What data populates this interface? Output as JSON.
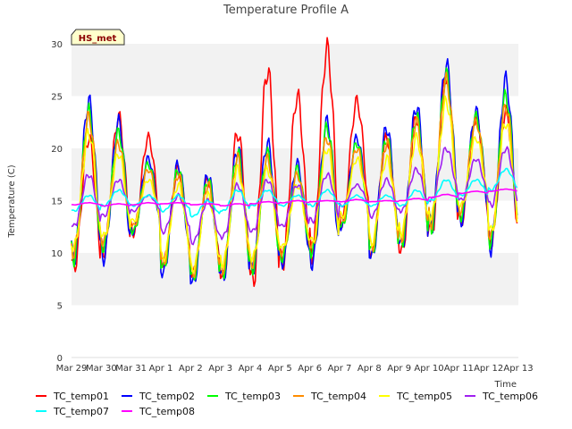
{
  "chart_data": {
    "type": "line",
    "title": "Temperature Profile A",
    "xlabel": "Time",
    "ylabel": "Temperature (C)",
    "ylim": [
      0,
      30
    ],
    "yticks": [
      0,
      5,
      10,
      15,
      20,
      25,
      30
    ],
    "xlim": [
      "2025-03-29",
      "2025-04-13"
    ],
    "xticks": [
      "Mar 29",
      "Mar 30",
      "Mar 31",
      "Apr 1",
      "Apr 2",
      "Apr 3",
      "Apr 4",
      "Apr 5",
      "Apr 6",
      "Apr 7",
      "Apr 8",
      "Apr 9",
      "Apr 10",
      "Apr 11",
      "Apr 12",
      "Apr 13"
    ],
    "grid": "horizontal bands",
    "legend_position": "bottom",
    "site_badge": "HS_met",
    "x": [
      "2025-03-29",
      "2025-03-30",
      "2025-03-31",
      "2025-04-01",
      "2025-04-02",
      "2025-04-03",
      "2025-04-04",
      "2025-04-05",
      "2025-04-06",
      "2025-04-07",
      "2025-04-08",
      "2025-04-09",
      "2025-04-10",
      "2025-04-11",
      "2025-04-12"
    ],
    "series": [
      {
        "name": "TC_temp01",
        "color": "#ff0000",
        "daily_min": [
          8.5,
          10.0,
          12.0,
          9.0,
          8.0,
          7.5,
          7.0,
          9.0,
          10.0,
          13.0,
          10.0,
          10.0,
          12.0,
          13.0,
          11.0
        ],
        "daily_max": [
          21.0,
          23.0,
          21.0,
          18.0,
          17.0,
          21.5,
          27.5,
          25.0,
          29.5,
          24.5,
          21.0,
          23.0,
          27.0,
          23.0,
          23.5
        ]
      },
      {
        "name": "TC_temp02",
        "color": "#0000ff",
        "daily_min": [
          9.5,
          9.5,
          12.0,
          8.0,
          7.0,
          7.5,
          8.5,
          9.0,
          9.0,
          12.5,
          9.5,
          10.5,
          12.5,
          13.0,
          10.5
        ],
        "daily_max": [
          24.5,
          22.5,
          19.0,
          18.5,
          17.5,
          20.0,
          20.5,
          18.5,
          22.5,
          21.0,
          22.0,
          24.0,
          28.0,
          23.5,
          26.5
        ]
      },
      {
        "name": "TC_temp03",
        "color": "#00ff00",
        "daily_min": [
          9.5,
          10.5,
          12.0,
          8.5,
          7.5,
          8.0,
          8.5,
          9.5,
          10.0,
          12.5,
          10.0,
          11.0,
          12.5,
          13.5,
          11.0
        ],
        "daily_max": [
          23.5,
          21.5,
          18.5,
          18.0,
          17.0,
          19.5,
          19.5,
          18.0,
          22.0,
          20.5,
          21.0,
          23.0,
          27.0,
          23.0,
          25.0
        ]
      },
      {
        "name": "TC_temp04",
        "color": "#ff8c00",
        "daily_min": [
          10.0,
          11.0,
          12.5,
          9.0,
          8.0,
          8.5,
          9.0,
          10.0,
          10.5,
          13.0,
          10.5,
          11.5,
          13.0,
          14.0,
          11.5
        ],
        "daily_max": [
          23.0,
          20.5,
          18.0,
          17.5,
          16.5,
          19.0,
          19.0,
          17.5,
          21.0,
          20.0,
          20.5,
          22.5,
          26.5,
          22.5,
          24.0
        ]
      },
      {
        "name": "TC_temp05",
        "color": "#ffff00",
        "daily_min": [
          10.5,
          11.5,
          13.0,
          9.5,
          8.5,
          9.0,
          9.5,
          10.5,
          11.0,
          13.5,
          11.0,
          12.0,
          13.5,
          14.5,
          12.0
        ],
        "daily_max": [
          21.5,
          19.5,
          17.0,
          16.5,
          15.5,
          18.0,
          18.0,
          16.5,
          20.0,
          19.0,
          19.0,
          21.0,
          24.5,
          21.0,
          22.5
        ]
      },
      {
        "name": "TC_temp06",
        "color": "#a020f0",
        "daily_min": [
          12.5,
          13.5,
          14.0,
          12.0,
          11.0,
          11.5,
          12.0,
          12.5,
          13.0,
          14.5,
          13.5,
          14.0,
          15.0,
          15.0,
          14.5
        ],
        "daily_max": [
          17.5,
          17.0,
          15.5,
          15.5,
          15.0,
          16.5,
          17.0,
          16.5,
          17.5,
          16.5,
          17.0,
          18.0,
          20.0,
          19.0,
          20.0
        ]
      },
      {
        "name": "TC_temp07",
        "color": "#00ffff",
        "daily_min": [
          14.0,
          14.5,
          14.5,
          14.0,
          13.5,
          14.0,
          14.5,
          14.5,
          14.5,
          14.5,
          14.5,
          14.5,
          15.0,
          15.5,
          16.0
        ],
        "daily_max": [
          15.5,
          16.0,
          15.5,
          15.5,
          15.0,
          16.0,
          16.0,
          15.5,
          16.0,
          15.5,
          15.5,
          16.0,
          17.0,
          17.0,
          18.0
        ]
      },
      {
        "name": "TC_temp08",
        "color": "#ff00ff",
        "daily_min": [
          14.6,
          14.5,
          14.6,
          14.7,
          14.6,
          14.5,
          14.7,
          14.8,
          14.9,
          14.9,
          14.9,
          15.0,
          15.3,
          15.7,
          15.9
        ],
        "daily_max": [
          14.8,
          14.7,
          14.8,
          14.8,
          14.7,
          14.7,
          14.9,
          15.0,
          15.0,
          15.1,
          15.0,
          15.2,
          15.6,
          15.9,
          16.1
        ]
      }
    ]
  }
}
